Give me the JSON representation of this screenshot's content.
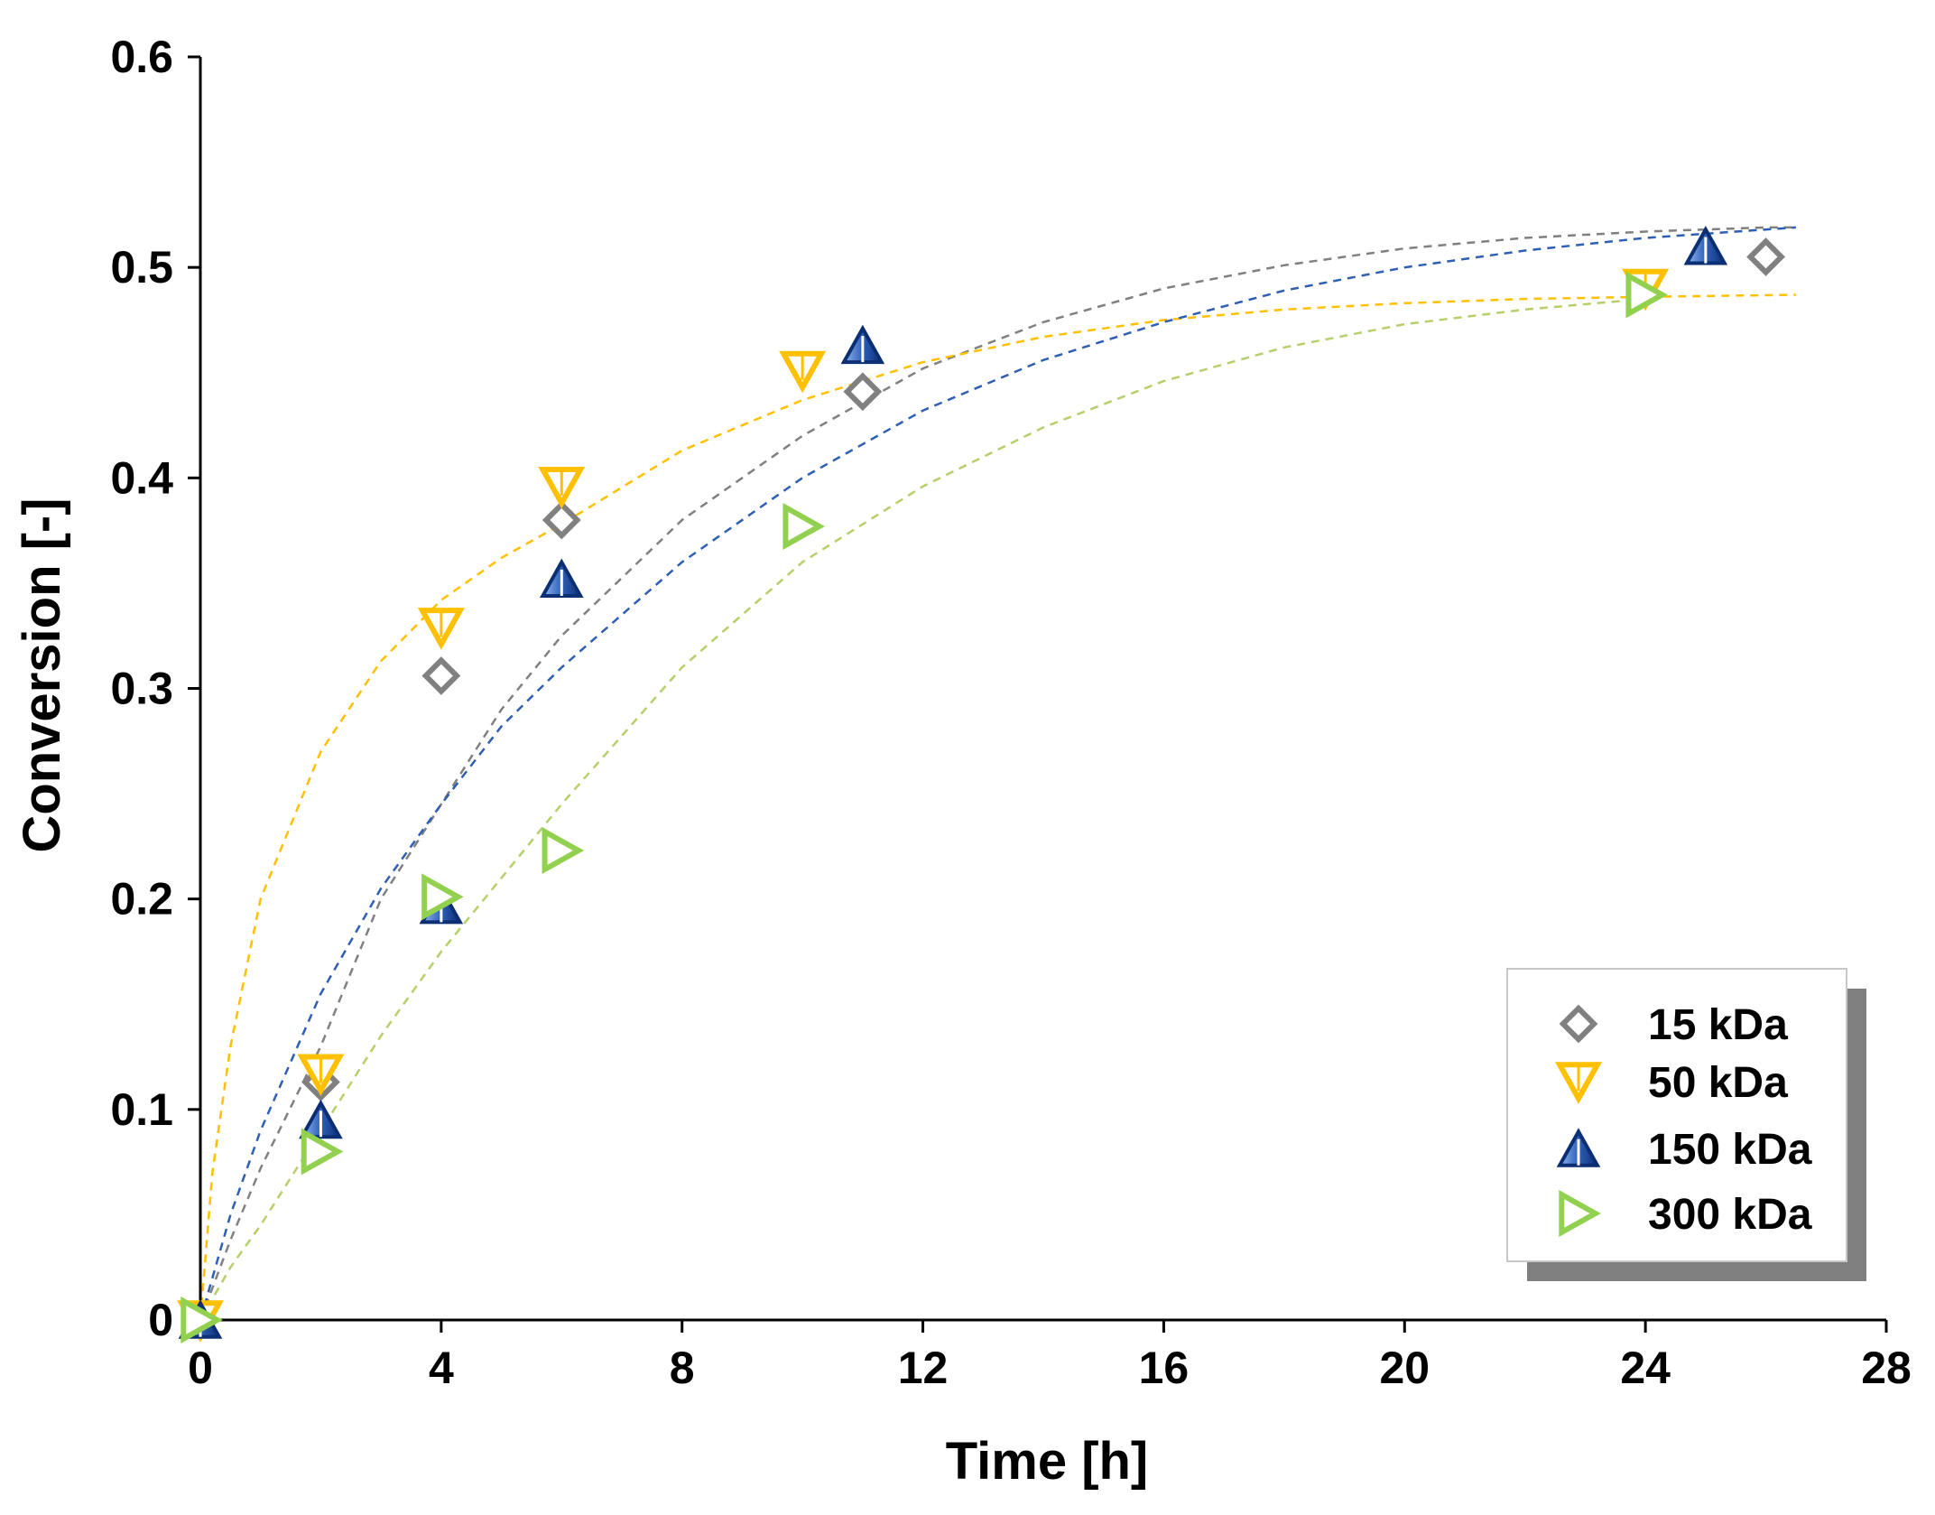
{
  "chart_data": {
    "type": "scatter",
    "title": "",
    "xlabel": "Time [h]",
    "ylabel": "Conversion [-]",
    "xlim": [
      0,
      28
    ],
    "ylim": [
      0,
      0.6
    ],
    "xticks": [
      0,
      4,
      8,
      12,
      16,
      20,
      24,
      28
    ],
    "xtick_labels": [
      "0",
      "4",
      "8",
      "12",
      "16",
      "20",
      "24",
      "28"
    ],
    "yticks": [
      0,
      0.1,
      0.2,
      0.3,
      0.4,
      0.5,
      0.6
    ],
    "ytick_labels": [
      "0",
      "0.1",
      "0.2",
      "0.3",
      "0.4",
      "0.5",
      "0.6"
    ],
    "grid": false,
    "legend_position": "bottom-right",
    "series": [
      {
        "name": "15 kDa",
        "marker": "diamond",
        "color": "#808080",
        "x": [
          0,
          2,
          4,
          6,
          11,
          26
        ],
        "y": [
          0,
          0.113,
          0.306,
          0.38,
          0.441,
          0.505
        ],
        "fit": {
          "style": "dashed",
          "color": "#808080",
          "x": [
            0,
            0.5,
            1,
            2,
            3,
            4,
            5,
            6,
            8,
            10,
            12,
            14,
            16,
            18,
            20,
            22,
            24,
            26,
            26.5
          ],
          "y": [
            0,
            0.038,
            0.072,
            0.13,
            0.2,
            0.245,
            0.29,
            0.325,
            0.38,
            0.42,
            0.452,
            0.474,
            0.49,
            0.501,
            0.509,
            0.514,
            0.517,
            0.519,
            0.519
          ]
        }
      },
      {
        "name": "50 kDa",
        "marker": "triangle-down",
        "color": "#FFC000",
        "x": [
          0,
          2,
          4,
          6,
          10,
          24
        ],
        "y": [
          0,
          0.117,
          0.329,
          0.396,
          0.451,
          0.49
        ],
        "fit": {
          "style": "dashed",
          "color": "#FFC000",
          "x": [
            0,
            0.2,
            0.5,
            1,
            2,
            3,
            4,
            5,
            6,
            8,
            10,
            12,
            14,
            16,
            18,
            20,
            22,
            24,
            26.5
          ],
          "y": [
            0,
            0.07,
            0.13,
            0.2,
            0.27,
            0.313,
            0.342,
            0.362,
            0.378,
            0.413,
            0.437,
            0.455,
            0.467,
            0.475,
            0.48,
            0.483,
            0.485,
            0.486,
            0.487
          ]
        }
      },
      {
        "name": "150 kDa",
        "marker": "triangle-up",
        "color": "#1F4E9E",
        "x": [
          0,
          2,
          4,
          6,
          11,
          25
        ],
        "y": [
          0,
          0.095,
          0.197,
          0.352,
          0.463,
          0.51
        ],
        "fit": {
          "style": "dashed",
          "color": "#2F5FB3",
          "x": [
            0,
            0.5,
            1,
            2,
            3,
            4,
            5,
            6,
            8,
            10,
            12,
            14,
            16,
            18,
            20,
            22,
            24,
            26,
            26.5
          ],
          "y": [
            0,
            0.05,
            0.09,
            0.155,
            0.205,
            0.245,
            0.282,
            0.31,
            0.36,
            0.4,
            0.432,
            0.456,
            0.474,
            0.489,
            0.5,
            0.508,
            0.514,
            0.518,
            0.519
          ]
        }
      },
      {
        "name": "300 kDa",
        "marker": "triangle-right",
        "color": "#92D050",
        "x": [
          0,
          2,
          4,
          6,
          10,
          24
        ],
        "y": [
          0,
          0.08,
          0.201,
          0.223,
          0.377,
          0.487
        ],
        "fit": {
          "style": "dashed",
          "color": "#B7CF6A",
          "x": [
            0,
            0.5,
            1,
            2,
            3,
            4,
            5,
            6,
            8,
            10,
            12,
            14,
            16,
            18,
            20,
            22,
            24
          ],
          "y": [
            0,
            0.025,
            0.045,
            0.09,
            0.135,
            0.175,
            0.21,
            0.245,
            0.31,
            0.36,
            0.396,
            0.424,
            0.446,
            0.462,
            0.473,
            0.48,
            0.485
          ]
        }
      }
    ]
  }
}
